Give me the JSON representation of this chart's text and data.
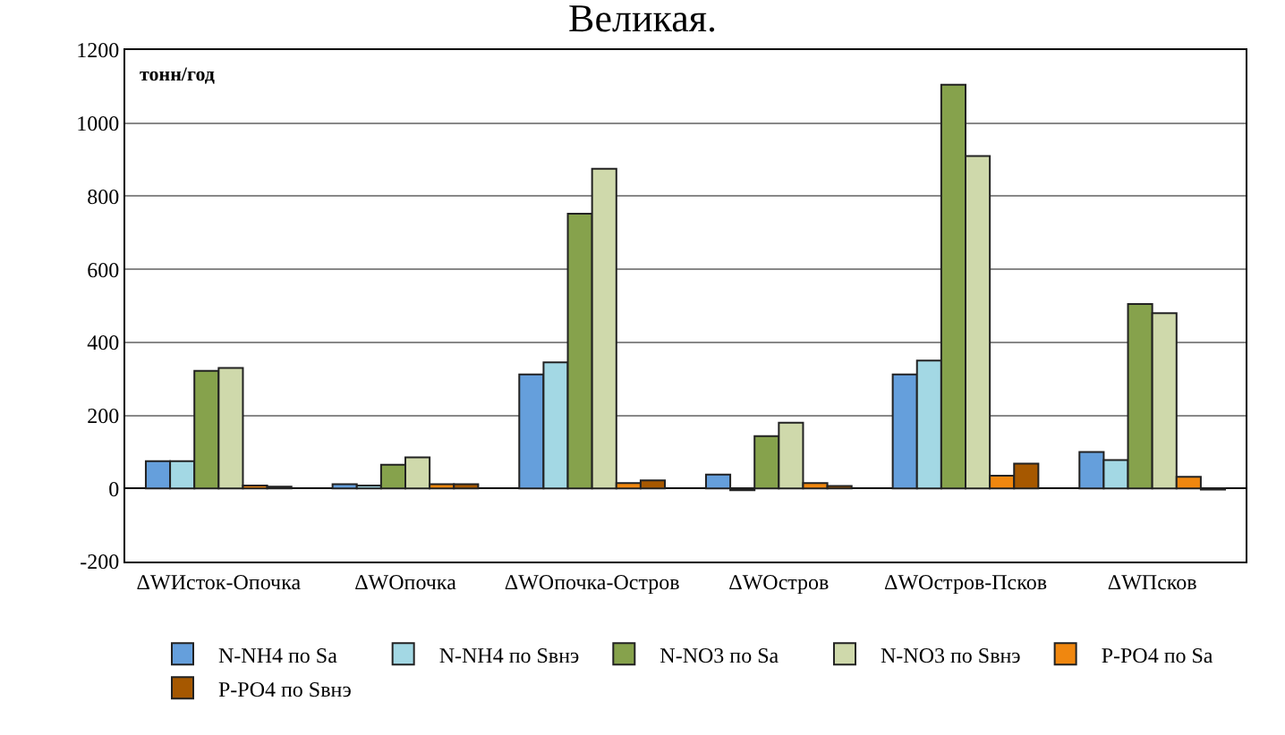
{
  "chart_data": {
    "type": "bar",
    "title": "Великая.",
    "ylabel": "тонн/год",
    "categories": [
      "ΔWИсток-Опочка",
      "ΔWОпочка",
      "ΔWОпочка-Остров",
      "ΔWОстров",
      "ΔWОстров-Псков",
      "ΔWПсков"
    ],
    "series": [
      {
        "name": "N-NH4 по Sa",
        "color": "#659fdc",
        "values": [
          75,
          12,
          312,
          38,
          312,
          100
        ]
      },
      {
        "name": "N-NH4 по Sвнэ",
        "color": "#a3d8e4",
        "values": [
          75,
          8,
          345,
          -5,
          350,
          78
        ]
      },
      {
        "name": "N-NO3 по Sa",
        "color": "#86a24c",
        "values": [
          322,
          65,
          752,
          143,
          1105,
          505
        ]
      },
      {
        "name": "N-NO3 по Sвнэ",
        "color": "#cfd9ab",
        "values": [
          330,
          85,
          875,
          180,
          910,
          480
        ]
      },
      {
        "name": "P-PO4 по Sa",
        "color": "#f0870f",
        "values": [
          8,
          12,
          15,
          15,
          35,
          32
        ]
      },
      {
        "name": "P-PO4 по Sвнэ",
        "color": "#a65800",
        "values": [
          5,
          12,
          22,
          7,
          68,
          -3
        ]
      }
    ],
    "ylim": [
      -200,
      1200
    ],
    "yticks": [
      -200,
      0,
      200,
      400,
      600,
      800,
      1000,
      1200
    ],
    "grid": "y",
    "legend": "bottom"
  }
}
